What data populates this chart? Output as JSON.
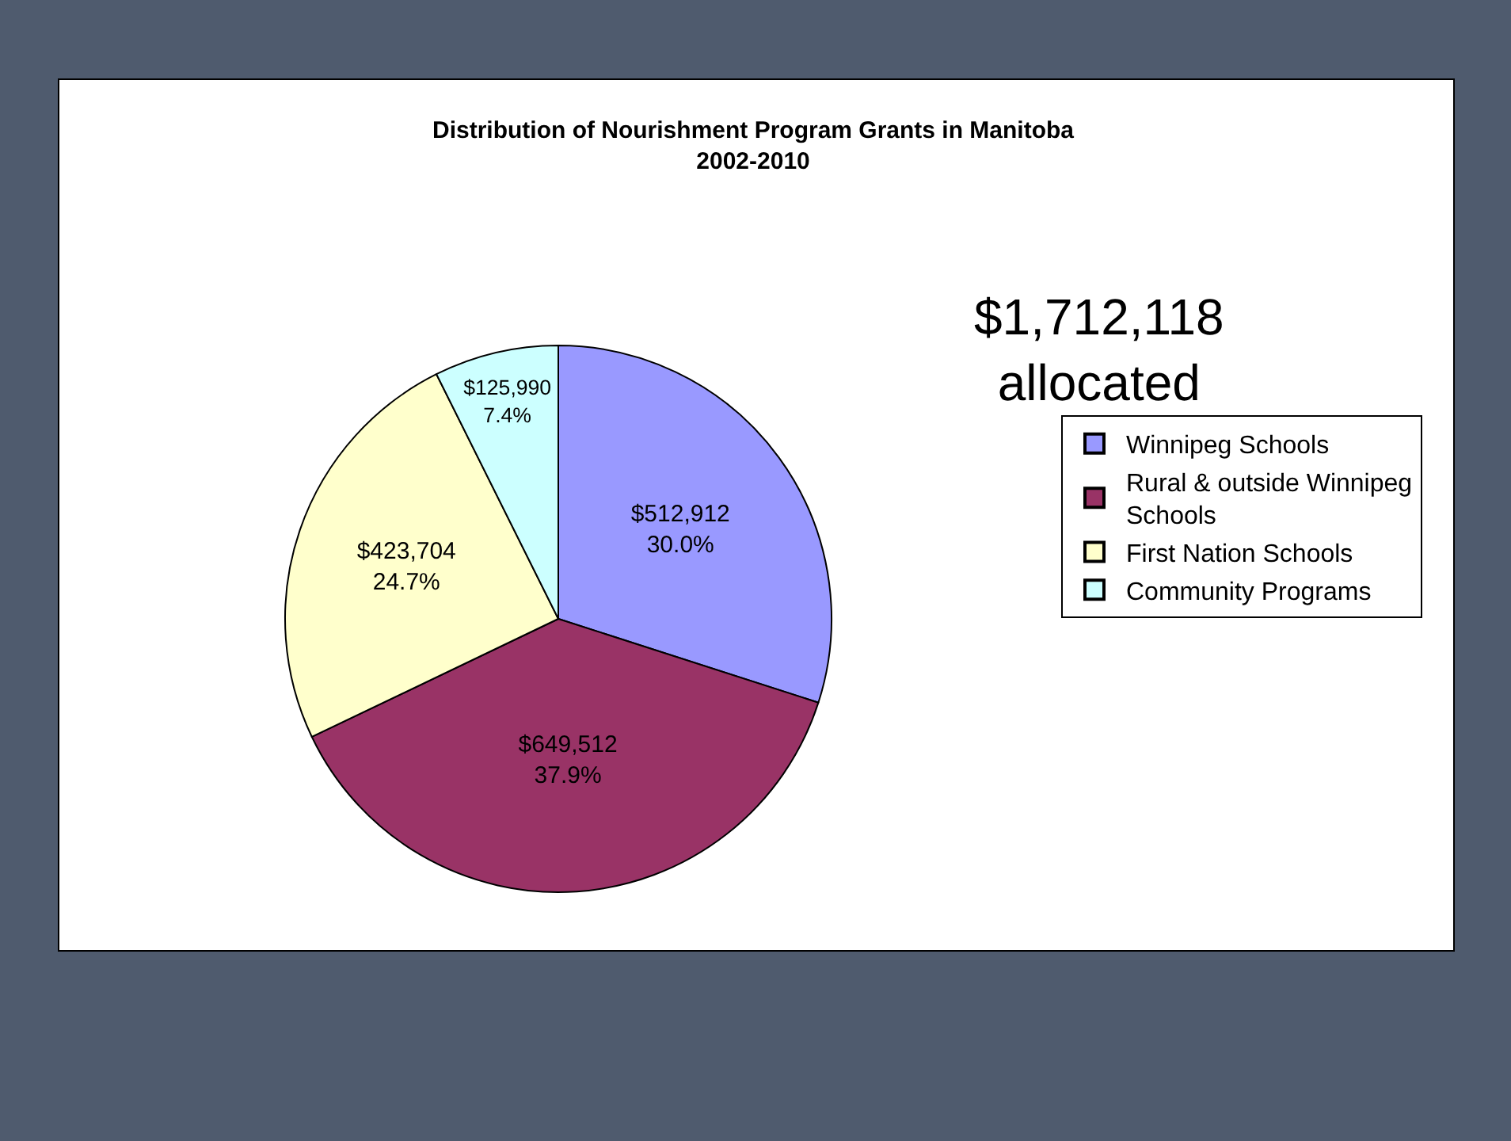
{
  "chart_data": {
    "type": "pie",
    "title": "Distribution of Nourishment Program Grants in Manitoba\n2002-2010",
    "categories": [
      "Winnipeg Schools",
      "Rural & outside Winnipeg Schools",
      "First Nation Schools",
      "Community Programs"
    ],
    "values": [
      512912,
      649512,
      423704,
      125990
    ],
    "colors": [
      "#9999ff",
      "#993366",
      "#ffffcc",
      "#ccffff"
    ],
    "value_labels": [
      "$512,912\n30.0%",
      "$649,512\n37.9%",
      "$423,704\n24.7%",
      "$125,990\n7.4%"
    ],
    "annotations": [
      "$1,712,118\nallocated"
    ],
    "legend": "right"
  }
}
